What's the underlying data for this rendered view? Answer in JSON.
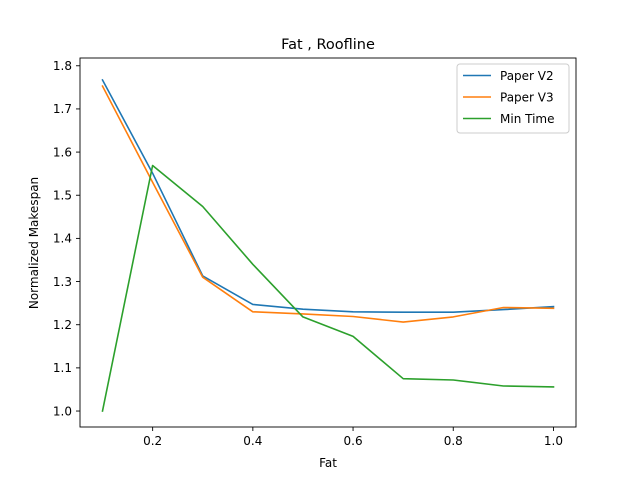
{
  "chart_data": {
    "type": "line",
    "title": "Fat , Roofline",
    "xlabel": "Fat",
    "ylabel": "Normalized Makespan",
    "xlim": [
      0.055,
      1.045
    ],
    "ylim": [
      0.963,
      1.818
    ],
    "xticks": [
      "0.2",
      "0.4",
      "0.6",
      "0.8",
      "1.0"
    ],
    "xtick_values": [
      0.2,
      0.4,
      0.6,
      0.8,
      1.0
    ],
    "yticks": [
      "1.0",
      "1.1",
      "1.2",
      "1.3",
      "1.4",
      "1.5",
      "1.6",
      "1.7",
      "1.8"
    ],
    "ytick_values": [
      1.0,
      1.1,
      1.2,
      1.3,
      1.4,
      1.5,
      1.6,
      1.7,
      1.8
    ],
    "grid": false,
    "legend_position": "top-right",
    "x": [
      0.1,
      0.2,
      0.3,
      0.4,
      0.5,
      0.6,
      0.7,
      0.8,
      0.9,
      1.0
    ],
    "series": [
      {
        "name": "Paper V2",
        "color": "#1f77b4",
        "values": [
          1.767,
          1.551,
          1.313,
          1.247,
          1.236,
          1.23,
          1.229,
          1.229,
          1.235,
          1.242
        ]
      },
      {
        "name": "Paper V3",
        "color": "#ff7f0e",
        "values": [
          1.753,
          1.53,
          1.31,
          1.23,
          1.225,
          1.219,
          1.206,
          1.218,
          1.24,
          1.238
        ]
      },
      {
        "name": "Min Time",
        "color": "#2ca02c",
        "values": [
          1.0,
          1.569,
          1.474,
          1.34,
          1.218,
          1.173,
          1.075,
          1.072,
          1.058,
          1.056
        ]
      }
    ]
  }
}
